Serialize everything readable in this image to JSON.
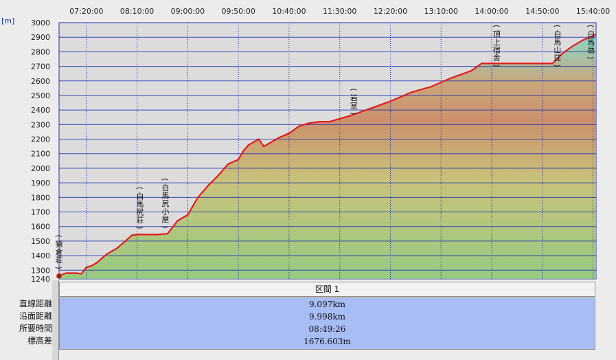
{
  "chart_data": {
    "type": "area",
    "unit_label": "[m]",
    "x_ticks": [
      "07:20:00",
      "08:10:00",
      "09:00:00",
      "09:50:00",
      "10:40:00",
      "11:30:00",
      "12:20:00",
      "13:10:00",
      "14:00:00",
      "14:50:00",
      "15:40:00"
    ],
    "y_ticks": [
      1240,
      1300,
      1400,
      1500,
      1600,
      1700,
      1800,
      1900,
      2000,
      2100,
      2200,
      2300,
      2400,
      2500,
      2600,
      2700,
      2800,
      2900,
      3000
    ],
    "ylim": [
      1240,
      3000
    ],
    "x_time_range": [
      "06:53:00",
      "15:43:00"
    ],
    "series": [
      {
        "x": [
          "06:53",
          "06:56",
          "07:00",
          "07:05",
          "07:10",
          "07:15",
          "07:20",
          "07:25",
          "07:30",
          "07:40",
          "07:50",
          "08:00",
          "08:05",
          "08:10",
          "08:20",
          "08:30",
          "08:40",
          "08:50",
          "09:00",
          "09:10",
          "09:20",
          "09:30",
          "09:40",
          "09:50",
          "09:55",
          "10:00",
          "10:10",
          "10:15",
          "10:20",
          "10:30",
          "10:40",
          "10:50",
          "11:00",
          "11:10",
          "11:20",
          "11:40",
          "12:00",
          "12:20",
          "12:40",
          "12:50",
          "13:00",
          "13:20",
          "13:40",
          "13:50",
          "13:55",
          "14:10",
          "14:30",
          "14:50",
          "15:00",
          "15:10",
          "15:20",
          "15:30",
          "15:40",
          "15:43"
        ],
        "y": [
          1260,
          1270,
          1280,
          1280,
          1280,
          1275,
          1320,
          1330,
          1350,
          1410,
          1450,
          1510,
          1540,
          1545,
          1545,
          1545,
          1550,
          1640,
          1680,
          1800,
          1880,
          1950,
          2030,
          2060,
          2120,
          2160,
          2200,
          2150,
          2170,
          2210,
          2240,
          2290,
          2310,
          2320,
          2320,
          2360,
          2410,
          2460,
          2520,
          2540,
          2560,
          2620,
          2670,
          2720,
          2720,
          2720,
          2720,
          2720,
          2720,
          2790,
          2840,
          2880,
          2910,
          2920
        ]
      }
    ],
    "landmarks": [
      {
        "time": "06:53",
        "elev": 1270,
        "label": "(猿倉荘)"
      },
      {
        "time": "08:13",
        "elev": 1545,
        "label": "(白馬尻荘)"
      },
      {
        "time": "08:38",
        "elev": 1550,
        "label": "(白馬尻小屋)"
      },
      {
        "time": "11:44",
        "elev": 2330,
        "label": "(岩室)"
      },
      {
        "time": "14:05",
        "elev": 2730,
        "label": "(頂上宿舎)"
      },
      {
        "time": "15:05",
        "elev": 2800,
        "label": "(白馬山荘)"
      },
      {
        "time": "15:38",
        "elev": 2920,
        "label": "(白馬岳)"
      }
    ],
    "gridlines": true,
    "line_color": "#e51a1a",
    "grid_color": "#1f2fb0"
  },
  "summary": {
    "segment_title": "区間 1",
    "rows": [
      {
        "label": "直線距離",
        "value": "9.097km"
      },
      {
        "label": "沿面距離",
        "value": "9.998km"
      },
      {
        "label": "所要時間",
        "value": "08:49:26"
      },
      {
        "label": "標高差",
        "value": "1676.603m"
      }
    ]
  }
}
